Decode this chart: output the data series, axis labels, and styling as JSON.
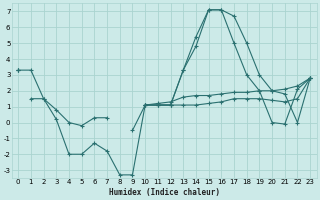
{
  "xlabel": "Humidex (Indice chaleur)",
  "background_color": "#cceae8",
  "grid_color": "#aad4d0",
  "line_color": "#2a7070",
  "xlim": [
    -0.5,
    23.5
  ],
  "ylim": [
    -3.5,
    7.5
  ],
  "xticks": [
    0,
    1,
    2,
    3,
    4,
    5,
    6,
    7,
    8,
    9,
    10,
    11,
    12,
    13,
    14,
    15,
    16,
    17,
    18,
    19,
    20,
    21,
    22,
    23
  ],
  "yticks": [
    -3,
    -2,
    -1,
    0,
    1,
    2,
    3,
    4,
    5,
    6,
    7
  ],
  "series": [
    {
      "y": [
        3.3,
        3.3,
        1.5,
        0.2,
        -2.0,
        -2.0,
        -1.3,
        -1.8,
        -3.3,
        -3.3,
        1.1,
        1.1,
        1.1,
        3.3,
        4.8,
        7.1,
        7.1,
        6.7,
        5.0,
        3.0,
        2.0,
        1.8,
        0.0,
        2.8
      ]
    },
    {
      "y": [
        3.3,
        null,
        null,
        null,
        null,
        null,
        null,
        null,
        null,
        null,
        1.1,
        1.2,
        1.3,
        1.6,
        1.7,
        1.7,
        1.8,
        1.9,
        1.9,
        2.0,
        2.0,
        2.1,
        2.3,
        2.8
      ]
    },
    {
      "y": [
        3.3,
        null,
        null,
        null,
        null,
        null,
        null,
        null,
        null,
        null,
        1.1,
        1.1,
        1.1,
        1.1,
        1.1,
        1.2,
        1.3,
        1.5,
        1.5,
        1.5,
        1.4,
        1.3,
        1.5,
        2.8
      ]
    },
    {
      "y": [
        null,
        1.5,
        1.5,
        0.8,
        0.0,
        -0.2,
        0.3,
        0.3,
        null,
        -0.5,
        1.1,
        1.1,
        1.1,
        3.3,
        5.4,
        7.1,
        7.1,
        5.0,
        3.0,
        2.0,
        0.0,
        -0.1,
        2.1,
        2.8
      ]
    }
  ]
}
